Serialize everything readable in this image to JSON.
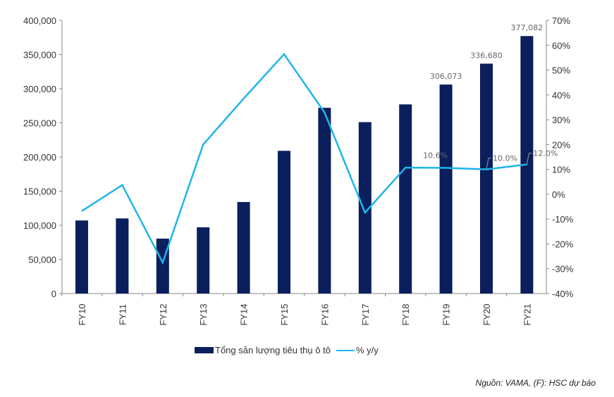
{
  "chart_data": {
    "type": "bar+line",
    "categories": [
      "FY10",
      "FY11",
      "FY12",
      "FY13",
      "FY14",
      "FY15",
      "FY16",
      "FY17",
      "FY18",
      "FY19",
      "FY20",
      "FY21"
    ],
    "series": [
      {
        "name": "Tổng sản lượng tiêu thụ ô tô",
        "type": "bar",
        "axis": "left",
        "color": "#0a1f5c",
        "values": [
          107000,
          110000,
          80400,
          97000,
          134000,
          209000,
          272000,
          251000,
          277000,
          306073,
          336680,
          377082
        ]
      },
      {
        "name": "% y/y",
        "type": "line",
        "axis": "right",
        "color": "#1eb4ec",
        "values": [
          -6.8,
          3.7,
          -27.5,
          20.0,
          38.5,
          56.4,
          32.9,
          -7.4,
          10.7,
          10.6,
          10.0,
          12.0
        ]
      }
    ],
    "bar_data_labels": [
      null,
      null,
      null,
      null,
      null,
      null,
      null,
      null,
      null,
      "306,073",
      "336,680",
      "377,082"
    ],
    "line_data_labels": [
      null,
      null,
      null,
      null,
      null,
      null,
      null,
      null,
      null,
      "10.6%",
      "10.0%",
      "12.0%"
    ],
    "left_axis": {
      "min": 0,
      "max": 400000,
      "step": 50000,
      "ticks": [
        "0",
        "50,000",
        "100,000",
        "150,000",
        "200,000",
        "250,000",
        "300,000",
        "350,000",
        "400,000"
      ]
    },
    "right_axis": {
      "min": -40,
      "max": 70,
      "step": 10,
      "ticks": [
        "-40%",
        "-30%",
        "-20%",
        "-10%",
        "0%",
        "10%",
        "20%",
        "30%",
        "40%",
        "50%",
        "60%",
        "70%"
      ]
    },
    "grid": false,
    "legend_position": "bottom"
  },
  "source_note": "Nguồn: VAMA, (F): HSC dự báo"
}
